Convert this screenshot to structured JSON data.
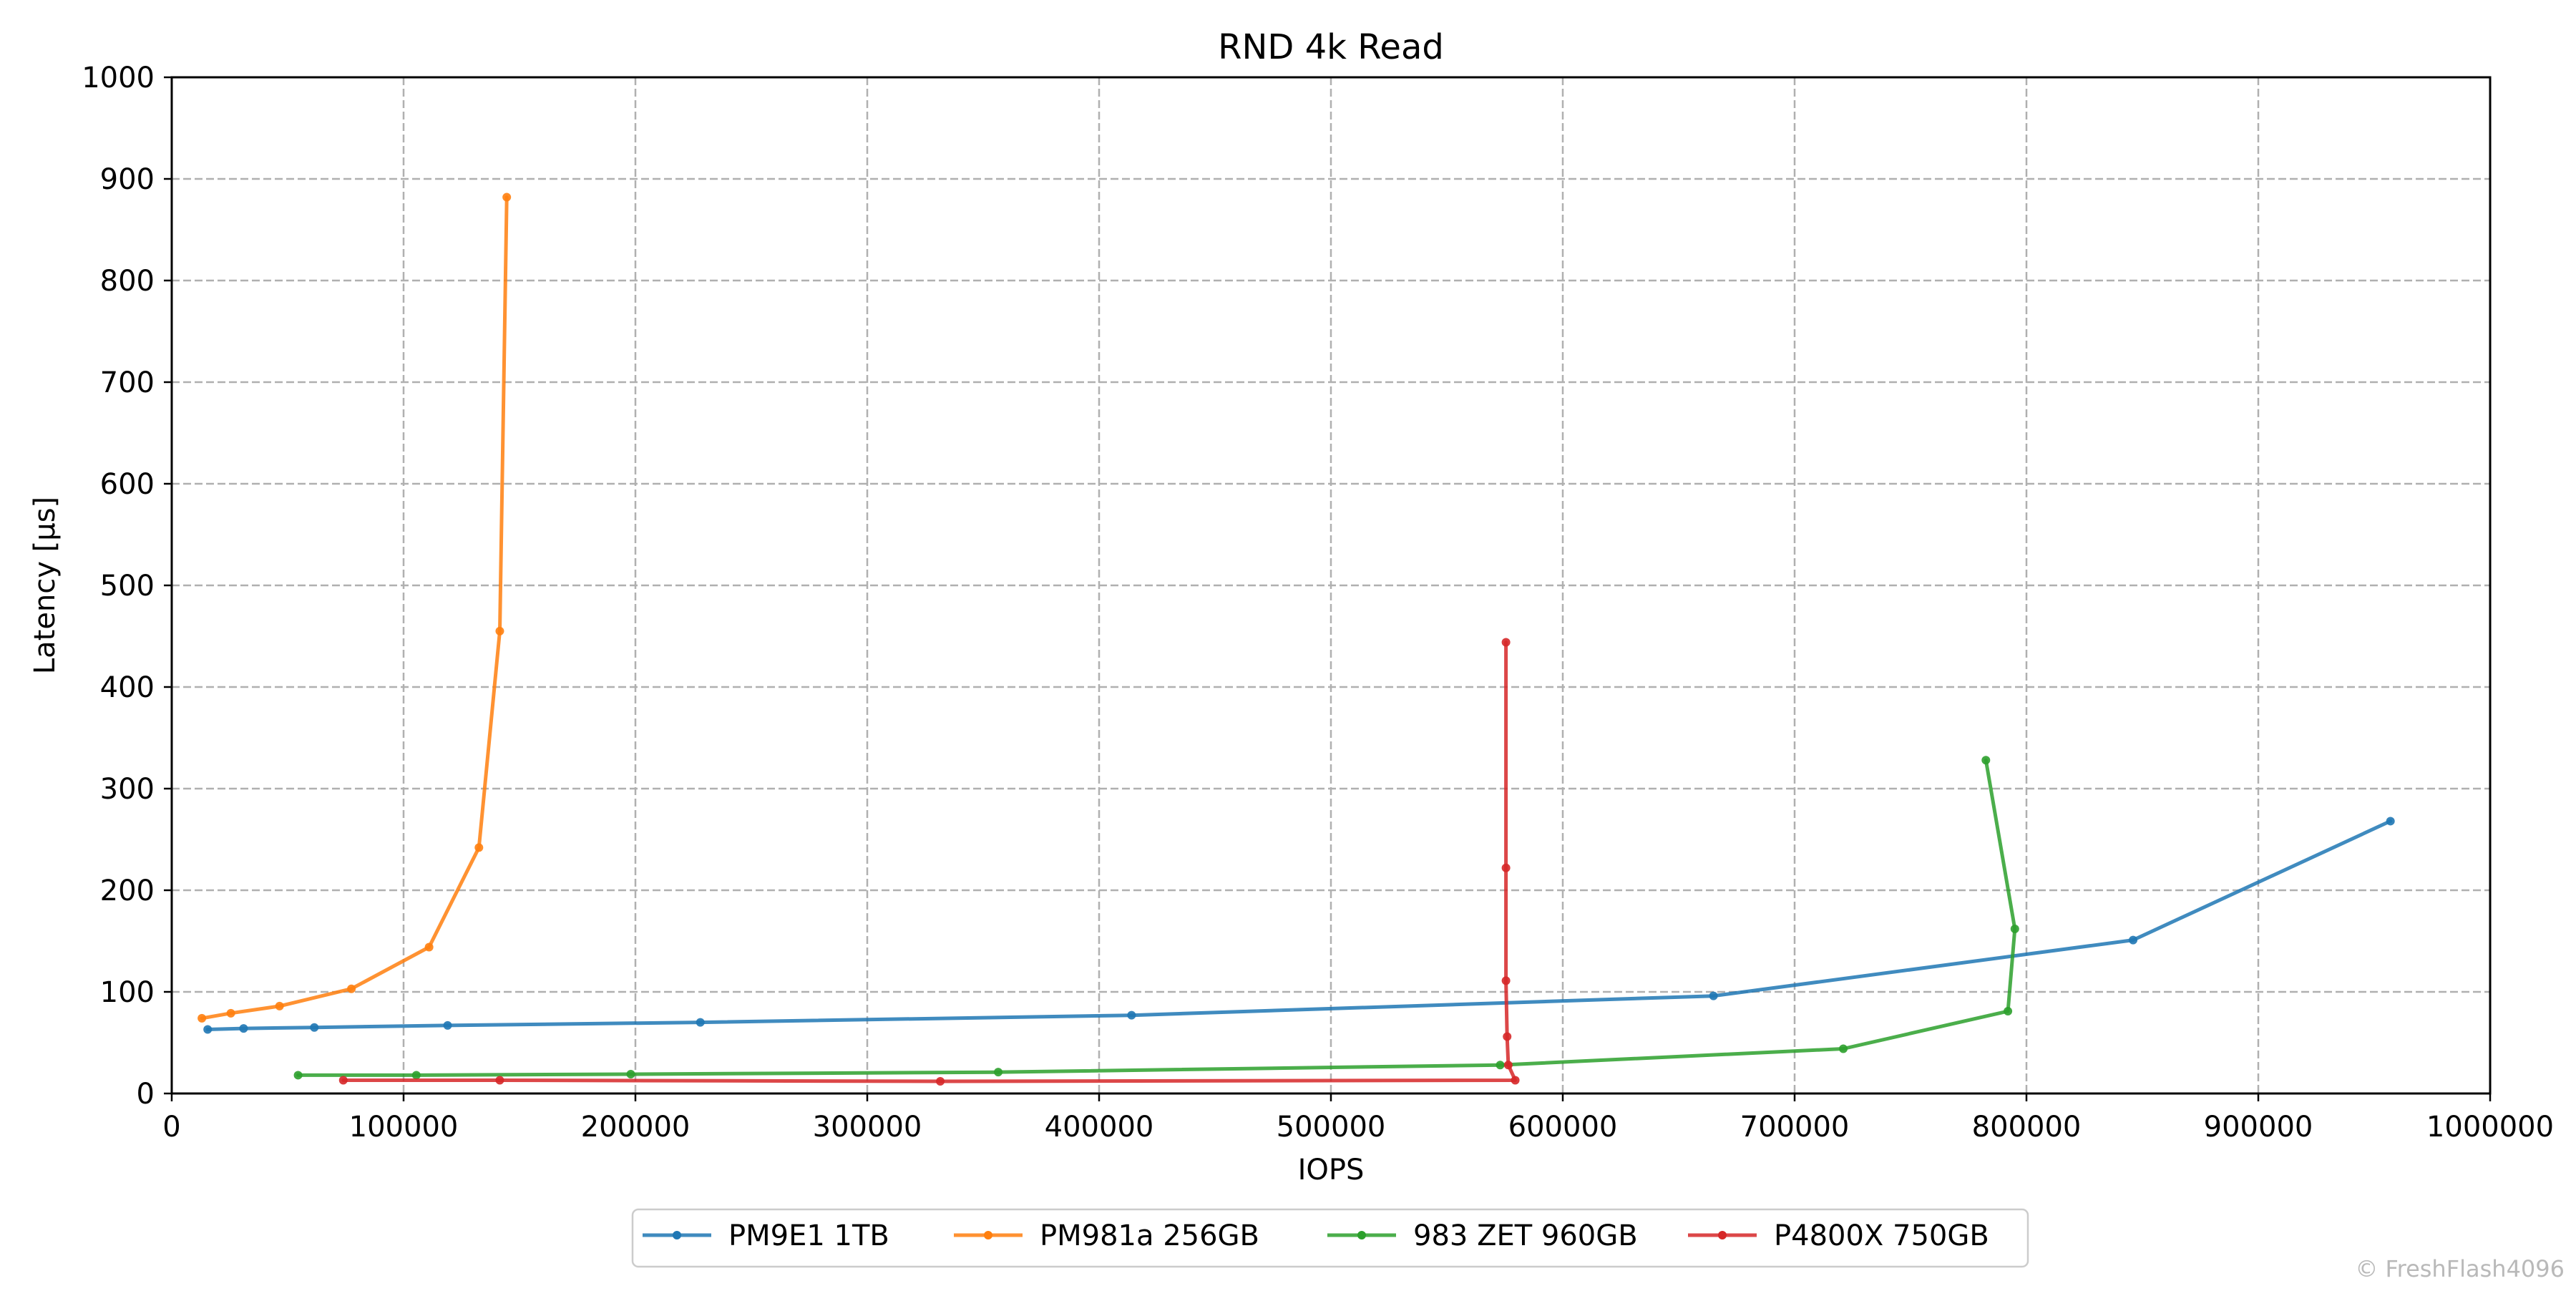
{
  "chart_data": {
    "type": "line",
    "title": "RND 4k Read",
    "xlabel": "IOPS",
    "ylabel": "Latency [µs]",
    "xlim": [
      0,
      1000000
    ],
    "ylim": [
      0,
      1000
    ],
    "xticks": [
      0,
      100000,
      200000,
      300000,
      400000,
      500000,
      600000,
      700000,
      800000,
      900000,
      1000000
    ],
    "yticks": [
      0,
      100,
      200,
      300,
      400,
      500,
      600,
      700,
      800,
      900,
      1000
    ],
    "grid": true,
    "legend_position": "bottom-center",
    "series": [
      {
        "name": "PM9E1 1TB",
        "color": "#1f77b4",
        "x": [
          15500,
          31000,
          61500,
          119000,
          228000,
          414000,
          665000,
          846000,
          957000
        ],
        "y": [
          63,
          64,
          65,
          67,
          70,
          77,
          96,
          151,
          268
        ]
      },
      {
        "name": "PM981a 256GB",
        "color": "#ff7f0e",
        "x": [
          13000,
          25500,
          46500,
          77500,
          111000,
          132500,
          141500,
          144500
        ],
        "y": [
          74,
          79,
          86,
          103,
          144,
          242,
          455,
          882
        ]
      },
      {
        "name": "983 ZET 960GB",
        "color": "#2ca02c",
        "x": [
          54500,
          105500,
          198000,
          356500,
          573000,
          721000,
          792000,
          795000,
          782500
        ],
        "y": [
          18,
          18,
          19,
          21,
          28,
          44,
          81,
          162,
          328
        ]
      },
      {
        "name": "P4800X 750GB",
        "color": "#d62728",
        "x": [
          74000,
          141500,
          331500,
          579500,
          576500,
          576000,
          575500,
          575500,
          575500
        ],
        "y": [
          13,
          13,
          12,
          13,
          28,
          56,
          111,
          222,
          444
        ]
      }
    ]
  },
  "watermark": "© FreshFlash4096"
}
